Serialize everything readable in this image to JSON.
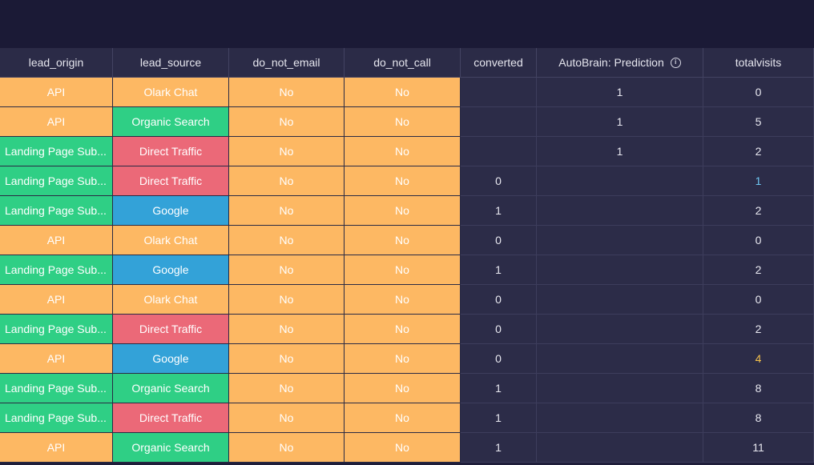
{
  "columns": [
    {
      "label": "lead_origin",
      "info": false
    },
    {
      "label": "lead_source",
      "info": false
    },
    {
      "label": "do_not_email",
      "info": false
    },
    {
      "label": "do_not_call",
      "info": false
    },
    {
      "label": "converted",
      "info": false
    },
    {
      "label": "AutoBrain: Prediction",
      "info": true
    },
    {
      "label": "totalvisits",
      "info": false
    }
  ],
  "info_glyph": "i",
  "colors": {
    "orange": "#fdb863",
    "green": "#2fcf85",
    "red": "#eb6978",
    "blue": "#33a2d8",
    "dark_cell": "#2c2c48",
    "highlight_blue": "#6ec7f2",
    "highlight_yellow": "#f6c24b"
  },
  "rows": [
    {
      "lead_origin": "API",
      "lead_source": "Olark Chat",
      "do_not_email": "No",
      "do_not_call": "No",
      "converted": "",
      "prediction": "1",
      "totalvisits": "0"
    },
    {
      "lead_origin": "API",
      "lead_source": "Organic Search",
      "do_not_email": "No",
      "do_not_call": "No",
      "converted": "",
      "prediction": "1",
      "totalvisits": "5"
    },
    {
      "lead_origin": "Landing Page Sub...",
      "lead_source": "Direct Traffic",
      "do_not_email": "No",
      "do_not_call": "No",
      "converted": "",
      "prediction": "1",
      "totalvisits": "2"
    },
    {
      "lead_origin": "Landing Page Sub...",
      "lead_source": "Direct Traffic",
      "do_not_email": "No",
      "do_not_call": "No",
      "converted": "0",
      "prediction": "",
      "totalvisits": "1",
      "totalvisits_highlight": "blue"
    },
    {
      "lead_origin": "Landing Page Sub...",
      "lead_source": "Google",
      "do_not_email": "No",
      "do_not_call": "No",
      "converted": "1",
      "prediction": "",
      "totalvisits": "2"
    },
    {
      "lead_origin": "API",
      "lead_source": "Olark Chat",
      "do_not_email": "No",
      "do_not_call": "No",
      "converted": "0",
      "prediction": "",
      "totalvisits": "0"
    },
    {
      "lead_origin": "Landing Page Sub...",
      "lead_source": "Google",
      "do_not_email": "No",
      "do_not_call": "No",
      "converted": "1",
      "prediction": "",
      "totalvisits": "2"
    },
    {
      "lead_origin": "API",
      "lead_source": "Olark Chat",
      "do_not_email": "No",
      "do_not_call": "No",
      "converted": "0",
      "prediction": "",
      "totalvisits": "0"
    },
    {
      "lead_origin": "Landing Page Sub...",
      "lead_source": "Direct Traffic",
      "do_not_email": "No",
      "do_not_call": "No",
      "converted": "0",
      "prediction": "",
      "totalvisits": "2"
    },
    {
      "lead_origin": "API",
      "lead_source": "Google",
      "do_not_email": "No",
      "do_not_call": "No",
      "converted": "0",
      "prediction": "",
      "totalvisits": "4",
      "totalvisits_highlight": "yellow"
    },
    {
      "lead_origin": "Landing Page Sub...",
      "lead_source": "Organic Search",
      "do_not_email": "No",
      "do_not_call": "No",
      "converted": "1",
      "prediction": "",
      "totalvisits": "8"
    },
    {
      "lead_origin": "Landing Page Sub...",
      "lead_source": "Direct Traffic",
      "do_not_email": "No",
      "do_not_call": "No",
      "converted": "1",
      "prediction": "",
      "totalvisits": "8"
    },
    {
      "lead_origin": "API",
      "lead_source": "Organic Search",
      "do_not_email": "No",
      "do_not_call": "No",
      "converted": "1",
      "prediction": "",
      "totalvisits": "11"
    }
  ]
}
